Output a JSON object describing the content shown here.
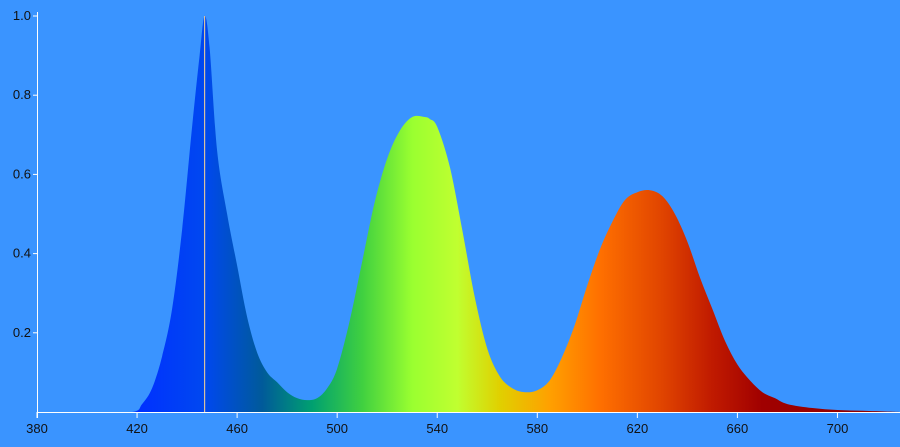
{
  "chart_data": {
    "type": "area",
    "title": "",
    "xlabel": "",
    "ylabel": "",
    "xlim": [
      380,
      725
    ],
    "ylim": [
      0,
      1.0
    ],
    "xticks": [
      "380",
      "420",
      "460",
      "500",
      "540",
      "580",
      "620",
      "660",
      "700"
    ],
    "yticks": [
      "1.0",
      "0.8",
      "0.6",
      "0.4",
      "0.2"
    ],
    "grid": false,
    "peak_marker_x": 447,
    "series": [
      {
        "x": [
          400,
          418,
          422,
          426,
          430,
          434,
          438,
          442,
          445,
          447,
          449,
          452,
          456,
          460,
          464,
          468,
          472,
          476,
          480,
          484,
          488,
          492,
          496,
          500,
          505,
          510,
          515,
          520,
          525,
          530,
          535,
          537,
          540,
          545,
          550,
          555,
          560,
          565,
          570,
          575,
          580,
          585,
          590,
          595,
          600,
          605,
          610,
          615,
          620,
          625,
          630,
          635,
          640,
          645,
          650,
          655,
          660,
          665,
          670,
          675,
          680,
          690,
          700,
          710,
          720,
          725
        ],
        "y": [
          0,
          0.0,
          0.02,
          0.06,
          0.14,
          0.26,
          0.46,
          0.72,
          0.9,
          1.0,
          0.92,
          0.66,
          0.5,
          0.37,
          0.24,
          0.15,
          0.1,
          0.075,
          0.05,
          0.035,
          0.03,
          0.035,
          0.06,
          0.11,
          0.23,
          0.38,
          0.53,
          0.64,
          0.71,
          0.745,
          0.745,
          0.74,
          0.72,
          0.62,
          0.46,
          0.29,
          0.16,
          0.09,
          0.06,
          0.05,
          0.055,
          0.08,
          0.14,
          0.22,
          0.32,
          0.41,
          0.48,
          0.535,
          0.555,
          0.56,
          0.545,
          0.5,
          0.43,
          0.34,
          0.26,
          0.18,
          0.12,
          0.08,
          0.05,
          0.035,
          0.02,
          0.01,
          0.005,
          0.003,
          0.001,
          0
        ]
      }
    ],
    "colors": {
      "background": "#3a94ff",
      "axis": "#ffffff",
      "peak_marker": "#d9c0a0"
    },
    "gradient": [
      {
        "x": 420,
        "color": "#0030ff"
      },
      {
        "x": 447,
        "color": "#0048f0"
      },
      {
        "x": 470,
        "color": "#005a9a"
      },
      {
        "x": 490,
        "color": "#00a070"
      },
      {
        "x": 510,
        "color": "#40d040"
      },
      {
        "x": 530,
        "color": "#9aff30"
      },
      {
        "x": 548,
        "color": "#c0ff30"
      },
      {
        "x": 565,
        "color": "#e0d000"
      },
      {
        "x": 585,
        "color": "#ffa000"
      },
      {
        "x": 605,
        "color": "#ff7000"
      },
      {
        "x": 630,
        "color": "#e04400"
      },
      {
        "x": 650,
        "color": "#c01a00"
      },
      {
        "x": 670,
        "color": "#a00000"
      },
      {
        "x": 725,
        "color": "#8a0000"
      }
    ]
  }
}
